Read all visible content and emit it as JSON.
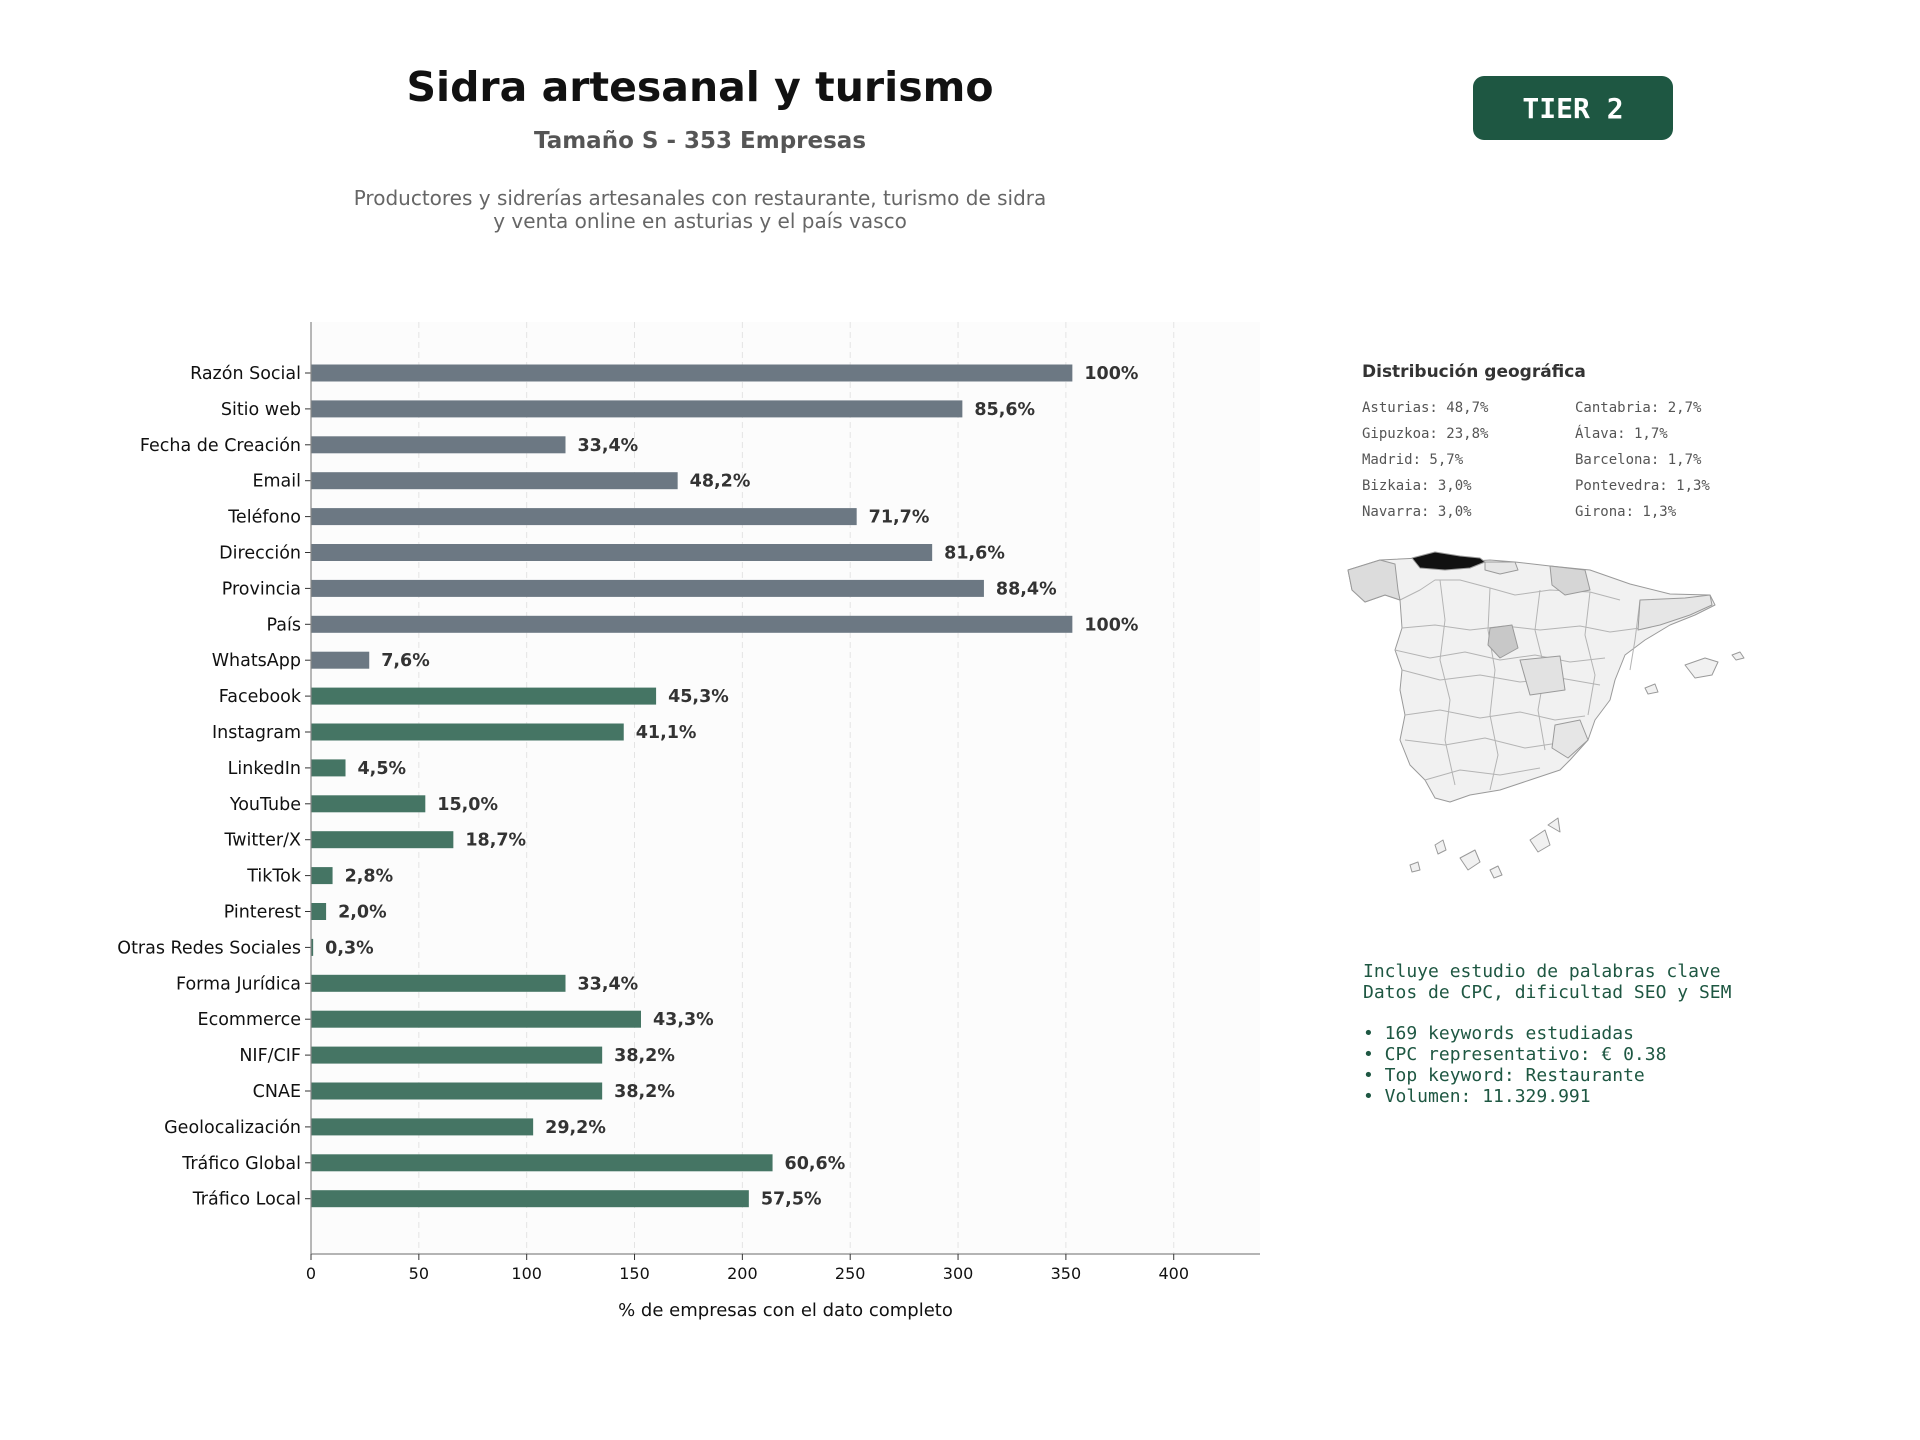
{
  "header": {
    "title": "Sidra artesanal y turismo",
    "subtitle": "Tamaño S - 353 Empresas",
    "description_line1": "Productores y sidrerías artesanales con restaurante, turismo de sidra",
    "description_line2": "y venta online en asturias y el país vasco",
    "tier_label": "TIER 2"
  },
  "chart_data": {
    "type": "bar",
    "orientation": "horizontal",
    "xlabel": "% de empresas con el dato completo",
    "xlim": [
      0,
      440
    ],
    "xticks": [
      0,
      50,
      100,
      150,
      200,
      250,
      300,
      350,
      400
    ],
    "grid": true,
    "categories": [
      "Razón Social",
      "Sitio web",
      "Fecha de Creación",
      "Email",
      "Teléfono",
      "Dirección",
      "Provincia",
      "País",
      "WhatsApp",
      "Facebook",
      "Instagram",
      "LinkedIn",
      "YouTube",
      "Twitter/X",
      "TikTok",
      "Pinterest",
      "Otras Redes Sociales",
      "Forma Jurídica",
      "Ecommerce",
      "NIF/CIF",
      "CNAE",
      "Geolocalización",
      "Tráfico Global",
      "Tráfico Local"
    ],
    "values": [
      353,
      302,
      118,
      170,
      253,
      288,
      312,
      353,
      27,
      160,
      145,
      16,
      53,
      66,
      10,
      7,
      1,
      118,
      153,
      135,
      135,
      103,
      214,
      203
    ],
    "labels": [
      "100%",
      "85,6%",
      "33,4%",
      "48,2%",
      "71,7%",
      "81,6%",
      "88,4%",
      "100%",
      "7,6%",
      "45,3%",
      "41,1%",
      "4,5%",
      "15,0%",
      "18,7%",
      "2,8%",
      "2,0%",
      "0,3%",
      "33,4%",
      "43,3%",
      "38,2%",
      "38,2%",
      "29,2%",
      "60,6%",
      "57,5%"
    ],
    "groups": [
      "basic",
      "basic",
      "basic",
      "basic",
      "basic",
      "basic",
      "basic",
      "basic",
      "basic",
      "extended",
      "extended",
      "extended",
      "extended",
      "extended",
      "extended",
      "extended",
      "extended",
      "extended",
      "extended",
      "extended",
      "extended",
      "extended",
      "extended",
      "extended"
    ],
    "colors": {
      "basic": "#6c7883",
      "extended": "#457564"
    }
  },
  "geo": {
    "title": "Distribución geográfica",
    "items": [
      "Asturias: 48,7%",
      "Cantabria: 2,7%",
      "Gipuzkoa: 23,8%",
      "Álava: 1,7%",
      "Madrid: 5,7%",
      "Barcelona: 1,7%",
      "Bizkaia: 3,0%",
      "Pontevedra: 1,3%",
      "Navarra: 3,0%",
      "Girona: 1,3%"
    ]
  },
  "info": {
    "line1": "Incluye estudio de palabras clave",
    "line2": "Datos de CPC, dificultad SEO y SEM",
    "bullets": [
      "• 169 keywords estudiadas",
      "• CPC representativo: € 0.38",
      "• Top keyword: Restaurante",
      "• Volumen: 11.329.991"
    ]
  }
}
